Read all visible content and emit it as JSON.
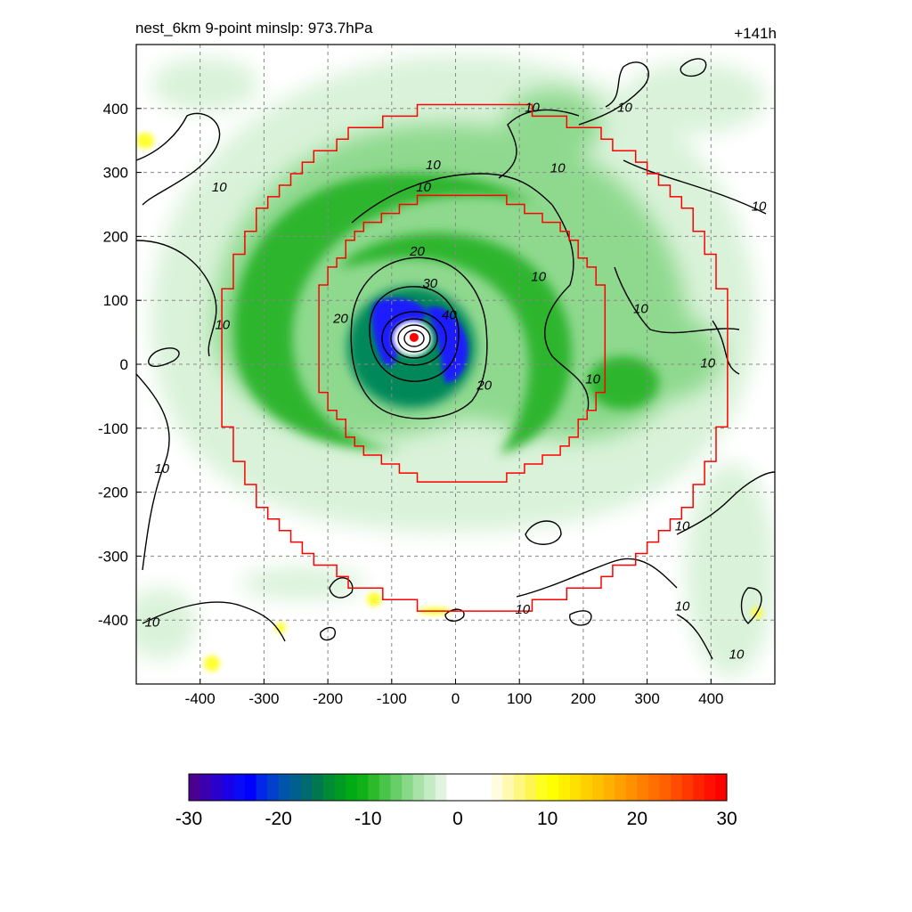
{
  "chart_data": {
    "type": "heatmap",
    "title_left": "nest_6km  9-point minslp: 973.7hPa",
    "title_right": "+141h",
    "xlabel": "",
    "ylabel": "",
    "xlim": [
      -500,
      500
    ],
    "ylim": [
      -500,
      500
    ],
    "x_ticks": [
      -400,
      -300,
      -200,
      -100,
      0,
      100,
      200,
      300,
      400
    ],
    "y_ticks": [
      -400,
      -300,
      -200,
      -100,
      0,
      100,
      200,
      300,
      400
    ],
    "grid": true,
    "grid_style": "dashed gray",
    "storm_center": [
      -65,
      42
    ],
    "storm_center_color": "#ff0000",
    "contour_lines": {
      "color": "#000000",
      "levels": [
        10,
        20,
        30,
        40,
        50,
        60
      ],
      "labels": [
        {
          "text": "10",
          "x": -370,
          "y": 270
        },
        {
          "text": "10",
          "x": -365,
          "y": 55
        },
        {
          "text": "10",
          "x": -460,
          "y": -170
        },
        {
          "text": "10",
          "x": -475,
          "y": -410
        },
        {
          "text": "10",
          "x": -35,
          "y": 305
        },
        {
          "text": "10",
          "x": -50,
          "y": 270
        },
        {
          "text": "10",
          "x": 120,
          "y": 395
        },
        {
          "text": "10",
          "x": 160,
          "y": 300
        },
        {
          "text": "10",
          "x": 265,
          "y": 395
        },
        {
          "text": "10",
          "x": 475,
          "y": 240
        },
        {
          "text": "10",
          "x": 130,
          "y": 130
        },
        {
          "text": "10",
          "x": 290,
          "y": 80
        },
        {
          "text": "10",
          "x": 395,
          "y": -5
        },
        {
          "text": "10",
          "x": 215,
          "y": -30
        },
        {
          "text": "10",
          "x": 355,
          "y": -260
        },
        {
          "text": "10",
          "x": 105,
          "y": -390
        },
        {
          "text": "10",
          "x": 355,
          "y": -385
        },
        {
          "text": "10",
          "x": 440,
          "y": -460
        },
        {
          "text": "20",
          "x": -60,
          "y": 170
        },
        {
          "text": "20",
          "x": -180,
          "y": 65
        },
        {
          "text": "20",
          "x": 45,
          "y": -40
        },
        {
          "text": "30",
          "x": -40,
          "y": 120
        },
        {
          "text": "40",
          "x": -10,
          "y": 70
        }
      ]
    },
    "inner_box_color": "#ff0000",
    "colorbar": {
      "ticks": [
        -30,
        -20,
        -10,
        0,
        10,
        20,
        30
      ],
      "range": [
        -30,
        30
      ],
      "colors": [
        "#4b0092",
        "#3a00b0",
        "#2a00cc",
        "#1a00e6",
        "#0a0af5",
        "#0000ff",
        "#0028e6",
        "#0040cc",
        "#0055aa",
        "#005f8f",
        "#006a70",
        "#00784f",
        "#008a33",
        "#009a22",
        "#00aa14",
        "#10b018",
        "#2cba2c",
        "#48c448",
        "#68ce68",
        "#88d888",
        "#a8e2a8",
        "#c4ecc4",
        "#dff5df",
        "#ffffff",
        "#ffffff",
        "#ffffff",
        "#ffffff",
        "#fffce0",
        "#fffab0",
        "#fff780",
        "#fff550",
        "#ffff20",
        "#ffff00",
        "#fff000",
        "#ffe000",
        "#ffd000",
        "#ffc000",
        "#ffb000",
        "#ffa000",
        "#ff9000",
        "#ff8000",
        "#ff7000",
        "#ff6000",
        "#ff4c00",
        "#ff3800",
        "#ff2400",
        "#ff1000",
        "#ff0000"
      ]
    }
  }
}
